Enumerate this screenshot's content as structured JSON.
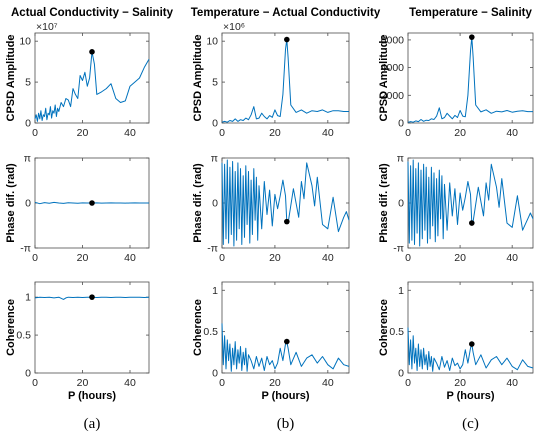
{
  "figure": {
    "xlabel": "P (hours)",
    "captions": [
      "(a)",
      "(b)",
      "(c)"
    ],
    "colors": {
      "series": "#0072bd",
      "marker": "#000000",
      "axes": "#4d4d4d"
    }
  },
  "chart_data": [
    {
      "type": "line",
      "panel": "a-cpsd",
      "title": "Actual Conductivity − Salinity",
      "ylabel": "CPSD Amplitude",
      "exponent_label": "×10⁷",
      "xlim": [
        0,
        48
      ],
      "ylim": [
        0,
        1.1
      ],
      "xticks": [
        0,
        20,
        40
      ],
      "xtick_labels": [
        "0",
        "20",
        "40"
      ],
      "yticks": [
        0,
        0.5,
        1
      ],
      "ytick_labels": [
        "0",
        "5",
        "10"
      ],
      "marker": {
        "x": 24,
        "y": 0.87
      },
      "x": [
        0,
        0.5,
        1,
        1.5,
        2,
        2.5,
        3,
        3.5,
        4,
        4.5,
        5,
        5.5,
        6,
        6.5,
        7,
        7.5,
        8,
        8.5,
        9,
        9.5,
        10,
        11,
        12,
        13,
        14,
        15,
        16,
        17,
        18,
        19,
        20,
        21,
        22,
        23,
        24,
        25,
        26,
        28,
        30,
        32,
        34,
        36,
        38,
        40,
        42,
        44,
        46,
        48
      ],
      "y": [
        0.05,
        0.1,
        0.02,
        0.12,
        0.05,
        0.15,
        0.03,
        0.1,
        0.08,
        0.18,
        0.04,
        0.12,
        0.1,
        0.2,
        0.06,
        0.15,
        0.12,
        0.22,
        0.08,
        0.18,
        0.14,
        0.25,
        0.2,
        0.3,
        0.28,
        0.2,
        0.42,
        0.35,
        0.3,
        0.58,
        0.52,
        0.62,
        0.45,
        0.55,
        0.87,
        0.72,
        0.35,
        0.38,
        0.42,
        0.48,
        0.3,
        0.25,
        0.27,
        0.45,
        0.5,
        0.55,
        0.68,
        0.78
      ]
    },
    {
      "type": "line",
      "panel": "a-phase",
      "ylabel": "Phase dif. (rad)",
      "xlim": [
        0,
        48
      ],
      "ylim": [
        -3.1416,
        3.1416
      ],
      "xticks": [
        0,
        20,
        40
      ],
      "xtick_labels": [
        "0",
        "20",
        "40"
      ],
      "yticks": [
        -3.1416,
        0,
        3.1416
      ],
      "ytick_labels": [
        "-π",
        "0",
        "π"
      ],
      "marker": {
        "x": 24,
        "y": 0
      },
      "x": [
        0,
        2,
        4,
        6,
        8,
        10,
        12,
        14,
        16,
        18,
        20,
        22,
        24,
        26,
        28,
        30,
        32,
        34,
        36,
        38,
        40,
        42,
        44,
        46,
        48
      ],
      "y": [
        0.05,
        -0.05,
        0.03,
        -0.02,
        0.04,
        0,
        -0.03,
        0.02,
        0,
        -0.02,
        0.01,
        0,
        0,
        0.01,
        -0.01,
        0,
        0.01,
        0,
        0,
        -0.01,
        0,
        0.01,
        0,
        0,
        0
      ]
    },
    {
      "type": "line",
      "panel": "a-coherence",
      "ylabel": "Coherence",
      "xlim": [
        0,
        48
      ],
      "ylim": [
        0,
        1.2
      ],
      "xticks": [
        0,
        20,
        40
      ],
      "xtick_labels": [
        "0",
        "20",
        "40"
      ],
      "yticks": [
        0,
        0.5,
        1
      ],
      "ytick_labels": [
        "0",
        "0.5",
        "1"
      ],
      "marker": {
        "x": 24,
        "y": 1.0
      },
      "x": [
        0,
        2,
        4,
        6,
        8,
        10,
        12,
        13,
        14,
        16,
        18,
        20,
        22,
        24,
        26,
        28,
        30,
        32,
        34,
        36,
        38,
        40,
        42,
        44,
        46,
        48
      ],
      "y": [
        0.99,
        1.0,
        0.995,
        1.0,
        0.99,
        1.0,
        0.97,
        0.99,
        1.0,
        0.995,
        1.0,
        0.995,
        1.0,
        1.0,
        0.995,
        1.0,
        1.0,
        0.995,
        1.0,
        1.0,
        0.995,
        1.0,
        1.0,
        1.0,
        0.995,
        1.0
      ]
    },
    {
      "type": "line",
      "panel": "b-cpsd",
      "title": "Temperature − Actual Conductivity",
      "ylabel": "CPSD Amplitude",
      "exponent_label": "×10⁶",
      "xlim": [
        0,
        48
      ],
      "ylim": [
        0,
        11
      ],
      "xticks": [
        0,
        20,
        40
      ],
      "xtick_labels": [
        "0",
        "20",
        "40"
      ],
      "yticks": [
        0,
        5,
        10
      ],
      "ytick_labels": [
        "0",
        "5",
        "10"
      ],
      "marker": {
        "x": 24.5,
        "y": 10.2
      },
      "x": [
        0,
        1,
        2,
        3,
        4,
        5,
        6,
        7,
        8,
        9,
        10,
        11,
        12,
        13,
        14,
        15,
        16,
        17,
        18,
        19,
        20,
        21,
        22,
        23,
        24,
        24.5,
        25,
        26,
        28,
        30,
        32,
        34,
        36,
        38,
        40,
        42,
        44,
        46,
        48
      ],
      "y": [
        0.1,
        0.2,
        0.1,
        0.3,
        0.2,
        0.5,
        0.2,
        0.4,
        0.3,
        0.6,
        0.4,
        1.0,
        2.0,
        0.5,
        0.6,
        1.2,
        0.8,
        0.5,
        0.9,
        0.7,
        1.6,
        0.9,
        0.8,
        3.5,
        9.0,
        10.2,
        8.0,
        2.2,
        1.3,
        1.6,
        1.2,
        1.5,
        1.4,
        1.6,
        1.3,
        1.5,
        1.5,
        1.4,
        1.4
      ]
    },
    {
      "type": "line",
      "panel": "b-phase",
      "ylabel": "Phase dif. (rad)",
      "xlim": [
        0,
        48
      ],
      "ylim": [
        -3.1416,
        3.1416
      ],
      "xticks": [
        0,
        20,
        40
      ],
      "xtick_labels": [
        "0",
        "20",
        "40"
      ],
      "yticks": [
        -3.1416,
        0,
        3.1416
      ],
      "ytick_labels": [
        "-π",
        "0",
        "π"
      ],
      "marker": {
        "x": 24.5,
        "y": -1.3
      },
      "x": [
        0,
        0.5,
        1,
        1.5,
        2,
        2.5,
        3,
        3.5,
        4,
        4.5,
        5,
        5.5,
        6,
        6.5,
        7,
        7.5,
        8,
        8.5,
        9,
        9.5,
        10,
        10.5,
        11,
        11.5,
        12,
        12.5,
        13,
        13.5,
        14,
        15,
        16,
        17,
        18,
        19,
        20,
        21,
        22,
        23,
        24,
        24.5,
        25,
        27,
        29,
        30,
        31,
        32,
        34,
        35,
        36,
        38,
        40,
        42,
        44,
        46,
        47,
        48
      ],
      "y": [
        2.8,
        -2.9,
        2.7,
        -2.5,
        3.0,
        -2.8,
        2.5,
        -2.2,
        2.9,
        -3.0,
        2.2,
        -2.6,
        2.8,
        -1.8,
        2.4,
        -2.9,
        1.9,
        -2.4,
        2.6,
        -1.5,
        2.2,
        -2.8,
        1.6,
        -2.2,
        2.4,
        -1.2,
        1.8,
        -2.6,
        1.2,
        -1.8,
        1.5,
        -0.8,
        0.9,
        -1.6,
        0.6,
        -0.4,
        0.5,
        1.6,
        0.5,
        -1.3,
        -1.4,
        1.0,
        -1.0,
        1.5,
        0.3,
        2.8,
        1.2,
        -0.2,
        1.8,
        -1.5,
        -1.8,
        0.4,
        -2.0,
        -1.0,
        -0.6,
        -1.2
      ]
    },
    {
      "type": "line",
      "panel": "b-coherence",
      "ylabel": "Coherence",
      "xlim": [
        0,
        48
      ],
      "ylim": [
        0,
        1.1
      ],
      "xticks": [
        0,
        20,
        40
      ],
      "xtick_labels": [
        "0",
        "20",
        "40"
      ],
      "yticks": [
        0,
        0.5,
        1
      ],
      "ytick_labels": [
        "0",
        "0.5",
        "1"
      ],
      "marker": {
        "x": 24.5,
        "y": 0.38
      },
      "x": [
        0,
        0.5,
        1,
        1.5,
        2,
        2.5,
        3,
        3.5,
        4,
        4.5,
        5,
        5.5,
        6,
        6.5,
        7,
        7.5,
        8,
        8.5,
        9,
        9.5,
        10,
        11,
        12,
        13,
        14,
        15,
        16,
        17,
        18,
        19,
        20,
        21,
        22,
        23,
        24,
        24.5,
        25,
        26,
        28,
        30,
        32,
        34,
        36,
        38,
        40,
        42,
        44,
        46,
        48
      ],
      "y": [
        0.6,
        0.1,
        0.45,
        0.05,
        0.4,
        0.15,
        0.35,
        0.02,
        0.3,
        0.1,
        0.38,
        0.05,
        0.28,
        0.12,
        0.32,
        0.03,
        0.25,
        0.1,
        0.3,
        0.02,
        0.22,
        0.15,
        0.05,
        0.2,
        0.08,
        0.18,
        0.03,
        0.2,
        0.1,
        0.15,
        0.05,
        0.12,
        0.3,
        0.15,
        0.35,
        0.38,
        0.3,
        0.1,
        0.25,
        0.08,
        0.18,
        0.22,
        0.12,
        0.2,
        0.1,
        0.05,
        0.18,
        0.1,
        0.08
      ]
    },
    {
      "type": "line",
      "panel": "c-cpsd",
      "title": "Temperature − Salinity",
      "ylabel": "CPSD Amplitude",
      "xlim": [
        0,
        48
      ],
      "ylim": [
        0,
        6500
      ],
      "xticks": [
        0,
        20,
        40
      ],
      "xtick_labels": [
        "0",
        "20",
        "40"
      ],
      "yticks": [
        0,
        2000,
        4000,
        6000
      ],
      "ytick_labels": [
        "0",
        "2000",
        "4000",
        "6000"
      ],
      "marker": {
        "x": 24.5,
        "y": 6200
      },
      "x": [
        0,
        1,
        2,
        3,
        4,
        5,
        6,
        7,
        8,
        9,
        10,
        11,
        12,
        13,
        14,
        15,
        16,
        17,
        18,
        19,
        20,
        21,
        22,
        23,
        24,
        24.5,
        25,
        26,
        28,
        30,
        32,
        34,
        36,
        38,
        40,
        42,
        44,
        46,
        48
      ],
      "y": [
        50,
        100,
        60,
        150,
        100,
        250,
        120,
        200,
        180,
        300,
        250,
        500,
        1100,
        300,
        400,
        700,
        500,
        300,
        550,
        400,
        900,
        500,
        450,
        2000,
        5200,
        6200,
        4800,
        1300,
        800,
        950,
        700,
        850,
        800,
        900,
        780,
        850,
        880,
        820,
        820
      ]
    },
    {
      "type": "line",
      "panel": "c-phase",
      "ylabel": "Phase dif. (rad)",
      "xlim": [
        0,
        48
      ],
      "ylim": [
        -3.1416,
        3.1416
      ],
      "xticks": [
        0,
        20,
        40
      ],
      "xtick_labels": [
        "0",
        "20",
        "40"
      ],
      "yticks": [
        -3.1416,
        0,
        3.1416
      ],
      "ytick_labels": [
        "-π",
        "0",
        "π"
      ],
      "marker": {
        "x": 24.5,
        "y": -1.4
      },
      "x": [
        0,
        0.5,
        1,
        1.5,
        2,
        2.5,
        3,
        3.5,
        4,
        4.5,
        5,
        5.5,
        6,
        6.5,
        7,
        7.5,
        8,
        8.5,
        9,
        9.5,
        10,
        10.5,
        11,
        11.5,
        12,
        12.5,
        13,
        13.5,
        14,
        15,
        16,
        17,
        18,
        19,
        20,
        21,
        22,
        23,
        24,
        24.5,
        25,
        27,
        29,
        30,
        31,
        32,
        34,
        35,
        36,
        38,
        40,
        42,
        44,
        46,
        47,
        48
      ],
      "y": [
        2.9,
        -2.8,
        2.6,
        -2.6,
        3.0,
        -2.9,
        2.4,
        -2.1,
        2.8,
        -3.0,
        2.3,
        -2.5,
        2.7,
        -1.9,
        2.5,
        -2.8,
        1.8,
        -2.5,
        2.5,
        -1.6,
        2.1,
        -2.7,
        1.7,
        -2.3,
        2.3,
        -1.1,
        1.9,
        -2.5,
        1.3,
        -1.9,
        1.4,
        -0.9,
        1.0,
        -1.5,
        0.7,
        -0.5,
        0.4,
        1.5,
        0.6,
        -1.4,
        -1.3,
        1.1,
        -0.9,
        1.4,
        0.2,
        2.7,
        1.1,
        -0.3,
        1.7,
        -1.4,
        -1.7,
        0.5,
        -1.9,
        -1.1,
        -0.7,
        -1.1
      ]
    },
    {
      "type": "line",
      "panel": "c-coherence",
      "ylabel": "Coherence",
      "xlim": [
        0,
        48
      ],
      "ylim": [
        0,
        1.1
      ],
      "xticks": [
        0,
        20,
        40
      ],
      "xtick_labels": [
        "0",
        "20",
        "40"
      ],
      "yticks": [
        0,
        0.5,
        1
      ],
      "ytick_labels": [
        "0",
        "0.5",
        "1"
      ],
      "marker": {
        "x": 24.5,
        "y": 0.35
      },
      "x": [
        0,
        0.5,
        1,
        1.5,
        2,
        2.5,
        3,
        3.5,
        4,
        4.5,
        5,
        5.5,
        6,
        6.5,
        7,
        7.5,
        8,
        8.5,
        9,
        9.5,
        10,
        11,
        12,
        13,
        14,
        15,
        16,
        17,
        18,
        19,
        20,
        21,
        22,
        23,
        24,
        24.5,
        25,
        26,
        28,
        30,
        32,
        34,
        36,
        38,
        40,
        42,
        44,
        46,
        48
      ],
      "y": [
        0.55,
        0.1,
        0.4,
        0.05,
        0.45,
        0.12,
        0.3,
        0.03,
        0.35,
        0.08,
        0.28,
        0.05,
        0.3,
        0.1,
        0.22,
        0.04,
        0.26,
        0.08,
        0.2,
        0.02,
        0.18,
        0.12,
        0.04,
        0.2,
        0.07,
        0.15,
        0.03,
        0.18,
        0.09,
        0.12,
        0.05,
        0.1,
        0.28,
        0.12,
        0.3,
        0.35,
        0.25,
        0.1,
        0.22,
        0.06,
        0.16,
        0.2,
        0.1,
        0.18,
        0.08,
        0.04,
        0.16,
        0.08,
        0.06
      ]
    }
  ]
}
